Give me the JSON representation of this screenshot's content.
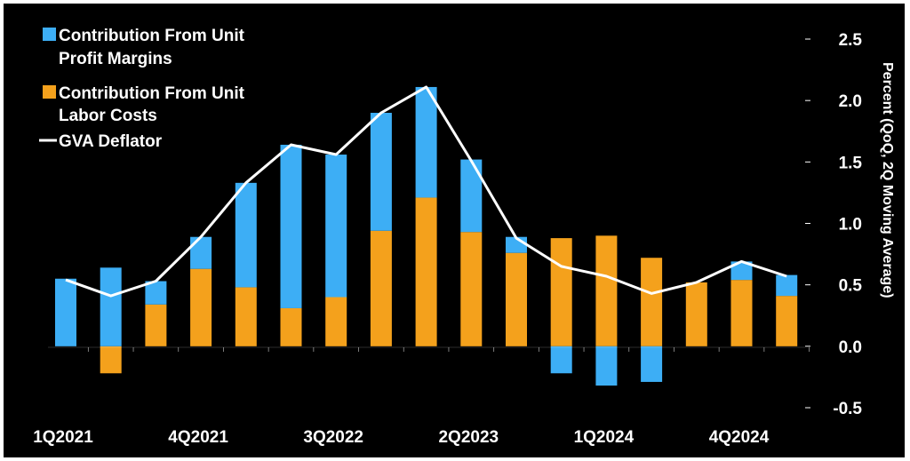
{
  "chart_data": {
    "type": "bar",
    "stacked": true,
    "categories": [
      "1Q2021",
      "2Q2021",
      "3Q2021",
      "4Q2021",
      "1Q2022",
      "2Q2022",
      "3Q2022",
      "4Q2022",
      "1Q2023",
      "2Q2023",
      "3Q2023",
      "4Q2023",
      "1Q2024",
      "2Q2024",
      "3Q2024",
      "4Q2024",
      "1Q2025"
    ],
    "x_tick_labels": [
      "1Q2021",
      "4Q2021",
      "3Q2022",
      "2Q2023",
      "1Q2024",
      "4Q2024"
    ],
    "x_tick_indices": [
      0,
      3,
      6,
      9,
      12,
      15
    ],
    "series": [
      {
        "name": "Contribution From Unit Profit Margins",
        "kind": "bar",
        "color": "#3daef5",
        "values": [
          0.55,
          0.64,
          0.19,
          0.26,
          0.85,
          1.33,
          1.16,
          0.96,
          0.9,
          0.59,
          0.13,
          -0.22,
          -0.32,
          -0.29,
          0.0,
          0.15,
          0.17
        ]
      },
      {
        "name": "Contribution From Unit Labor Costs",
        "kind": "bar",
        "color": "#f4a11c",
        "values": [
          0.0,
          -0.22,
          0.34,
          0.63,
          0.48,
          0.31,
          0.4,
          0.94,
          1.21,
          0.93,
          0.76,
          0.88,
          0.9,
          0.72,
          0.52,
          0.54,
          0.41
        ]
      },
      {
        "name": "GVA Deflator",
        "kind": "line",
        "color": "#ffffff",
        "values": [
          0.54,
          0.41,
          0.53,
          0.89,
          1.33,
          1.64,
          1.56,
          1.9,
          2.11,
          1.51,
          0.88,
          0.65,
          0.57,
          0.43,
          0.52,
          0.69,
          0.57
        ]
      }
    ],
    "y_ticks": [
      "2.5",
      "2.0",
      "1.5",
      "1.0",
      "0.5",
      "0.0",
      "-0.5"
    ],
    "ylim": [
      -0.5,
      2.5
    ],
    "ylabel": "Percent (QoQ, 2Q Moving Average)",
    "y_axis_side": "right",
    "legend_position": "top-left",
    "grid": false,
    "background": "#000000"
  },
  "legend": {
    "profit_line1": "Contribution From Unit",
    "profit_line2": "Profit Margins",
    "labor_line1": "Contribution From Unit",
    "labor_line2": "Labor Costs",
    "gva": "GVA Deflator"
  }
}
